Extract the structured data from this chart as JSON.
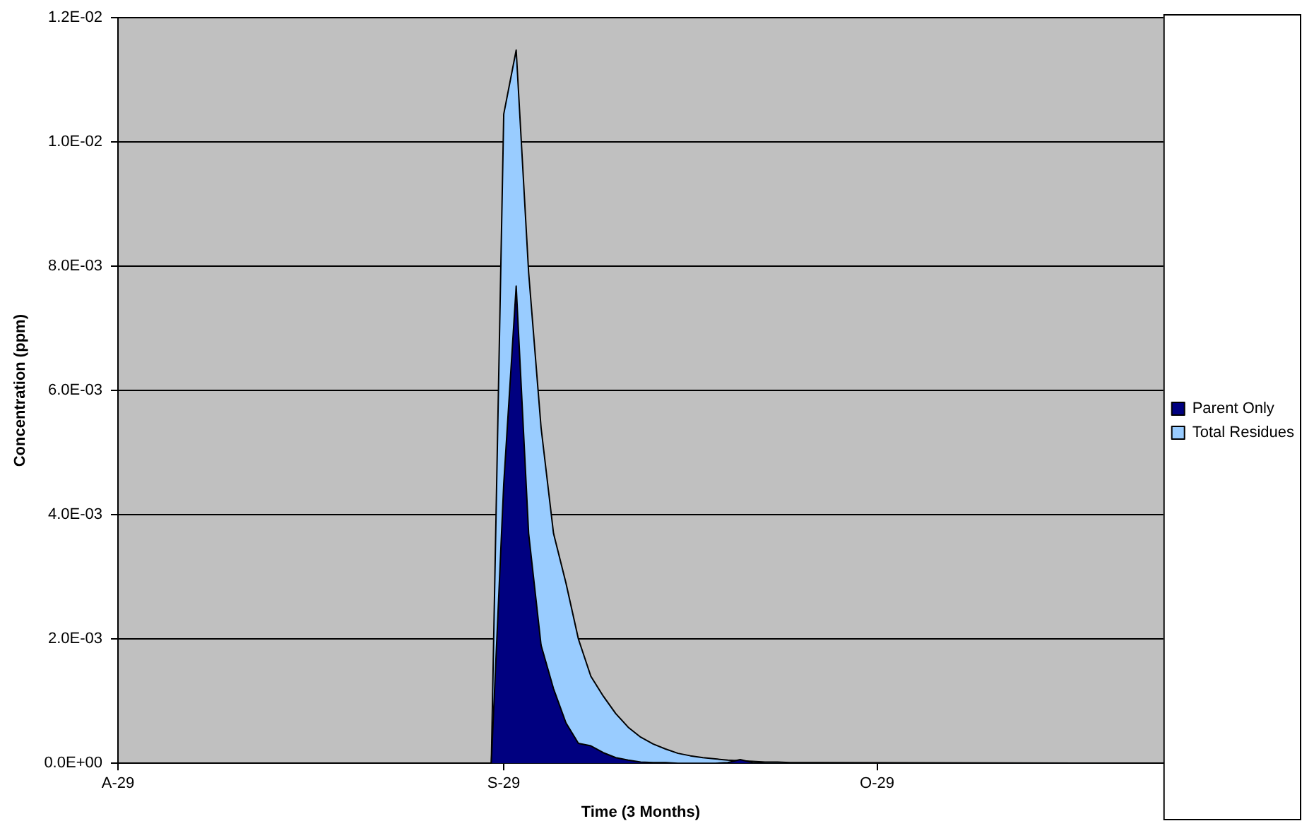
{
  "chart_data": {
    "type": "area",
    "xlabel": "Time (3 Months)",
    "ylabel": "Concentration (ppm)",
    "x": [
      "--08-29",
      "--09-28",
      "--09-29",
      "--09-30",
      "--10-01",
      "--10-02",
      "--10-03",
      "--10-04",
      "--10-05",
      "--10-06",
      "--10-07",
      "--10-08",
      "--10-09",
      "--10-10",
      "--10-11",
      "--10-12",
      "--10-13",
      "--10-14",
      "--10-15",
      "--10-16",
      "--10-17",
      "--10-18",
      "--10-19",
      "--10-20",
      "--10-21",
      "--10-22",
      "--10-23",
      "--10-24",
      "--11-21"
    ],
    "series": [
      {
        "name": "Total Residues",
        "color": "#99ccff",
        "values": [
          0,
          0,
          0.01045,
          0.01148,
          0.0079,
          0.0054,
          0.0037,
          0.0029,
          0.002,
          0.0014,
          0.00108,
          0.0008,
          0.00058,
          0.00042,
          0.00031,
          0.00023,
          0.00016,
          0.00012,
          9e-05,
          7e-05,
          5e-05,
          4e-05,
          3e-05,
          2e-05,
          2e-05,
          1e-05,
          1e-05,
          1e-05,
          0
        ]
      },
      {
        "name": "Parent Only",
        "color": "#000080",
        "values": [
          0,
          0,
          0.0045,
          0.00768,
          0.0037,
          0.0019,
          0.0012,
          0.00065,
          0.00032,
          0.00028,
          0.00017,
          9e-05,
          5e-05,
          2e-05,
          1e-05,
          1e-05,
          0,
          0,
          0,
          0,
          1e-05,
          6e-05,
          1e-05,
          0,
          0,
          0,
          0,
          0,
          0
        ]
      }
    ],
    "xlim": [
      "--08-29",
      "--11-21"
    ],
    "xticks": [
      {
        "value": "--08-29",
        "label": "A-29"
      },
      {
        "value": "--09-29",
        "label": "S-29"
      },
      {
        "value": "--10-29",
        "label": "O-29"
      }
    ],
    "ylim": [
      0,
      0.012
    ],
    "yticks": [
      {
        "value": 0,
        "label": "0.0E+00"
      },
      {
        "value": 0.002,
        "label": "2.0E-03"
      },
      {
        "value": 0.004,
        "label": "4.0E-03"
      },
      {
        "value": 0.006,
        "label": "6.0E-03"
      },
      {
        "value": 0.008,
        "label": "8.0E-03"
      },
      {
        "value": 0.01,
        "label": "1.0E-02"
      },
      {
        "value": 0.012,
        "label": "1.2E-02"
      }
    ],
    "grid": "y",
    "legend": "right"
  }
}
